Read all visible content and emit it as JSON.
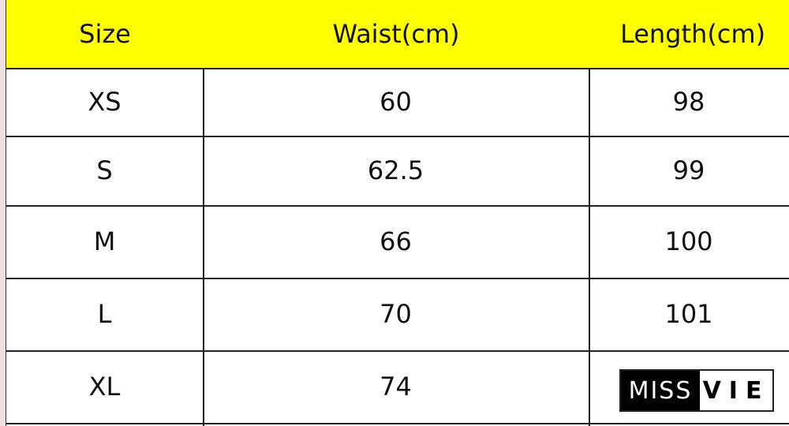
{
  "headers": [
    "Size",
    "Waist(cm)",
    "Length(cm)"
  ],
  "rows": [
    [
      "XS",
      "60",
      "98"
    ],
    [
      "S",
      "62.5",
      "99"
    ],
    [
      "M",
      "66",
      "100"
    ],
    [
      "L",
      "70",
      "101"
    ],
    [
      "XL",
      "74",
      ""
    ]
  ],
  "logo": {
    "part1": "MISS",
    "part2": "VIE"
  },
  "colors": {
    "header_bg": "#ffff00"
  }
}
